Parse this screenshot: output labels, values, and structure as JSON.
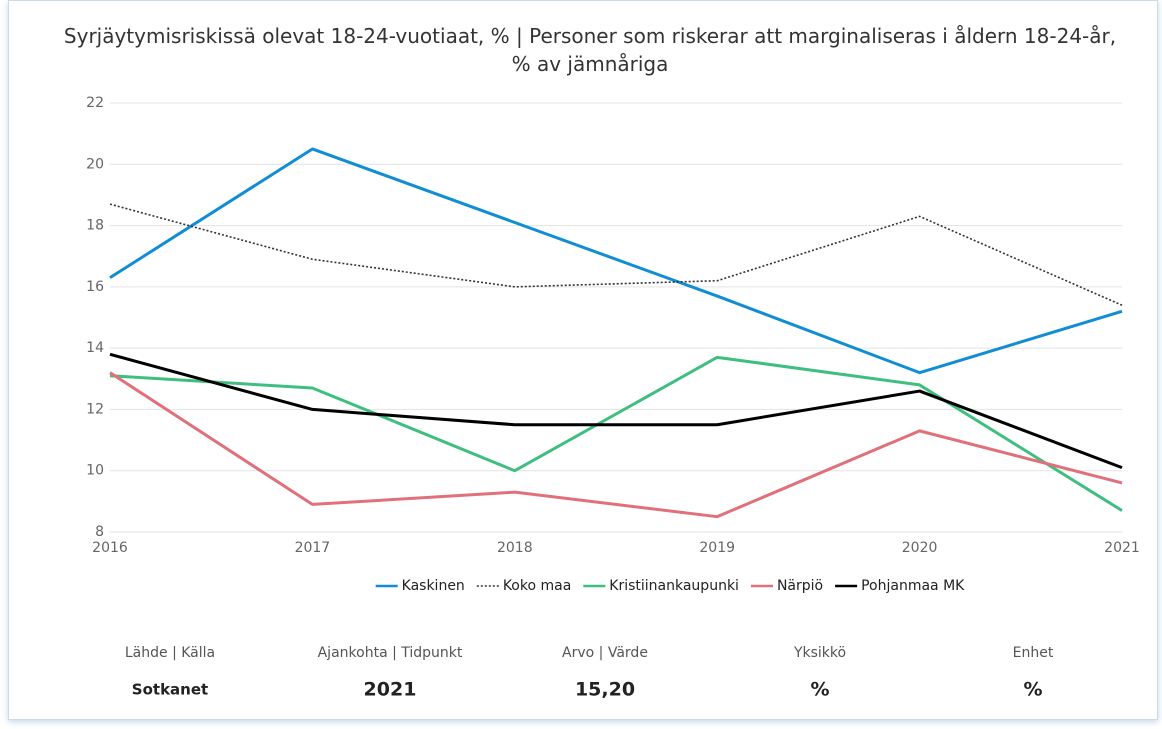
{
  "chart_data": {
    "type": "line",
    "title": "Syrjäytymisriskissä olevat 18-24-vuotiaat, % | Personer som riskerar att marginaliseras i åldern 18-24-år, % av jämnåriga",
    "categories": [
      "2016",
      "2017",
      "2018",
      "2019",
      "2020",
      "2021"
    ],
    "series": [
      {
        "name": "Kaskinen",
        "color": "#118dd4",
        "dash": "solid",
        "values": [
          16.3,
          20.5,
          18.1,
          15.7,
          13.2,
          15.2
        ]
      },
      {
        "name": "Koko maa",
        "color": "#333333",
        "dash": "dotted",
        "values": [
          18.7,
          16.9,
          16.0,
          16.2,
          18.3,
          15.4
        ]
      },
      {
        "name": "Kristiinankaupunki",
        "color": "#3fbf7f",
        "dash": "solid",
        "values": [
          13.1,
          12.7,
          10.0,
          13.7,
          12.8,
          8.7
        ]
      },
      {
        "name": "Närpiö",
        "color": "#e0707a",
        "dash": "solid",
        "values": [
          13.2,
          8.9,
          9.3,
          8.5,
          11.3,
          9.6
        ]
      },
      {
        "name": "Pohjanmaa MK",
        "color": "#000000",
        "dash": "solid",
        "values": [
          13.8,
          12.0,
          11.5,
          11.5,
          12.6,
          10.1
        ]
      }
    ],
    "ylim": [
      8,
      22
    ],
    "yticks": [
      8,
      10,
      12,
      14,
      16,
      18,
      20,
      22
    ],
    "grid": true,
    "legend": "bottom"
  },
  "summary": {
    "headers": [
      "Lähde | Källa",
      "Ajankohta | Tidpunkt",
      "Arvo | Värde",
      "Yksikkö",
      "Enhet"
    ],
    "values": [
      "Sotkanet",
      "2021",
      "15,20",
      "%",
      "%"
    ]
  }
}
